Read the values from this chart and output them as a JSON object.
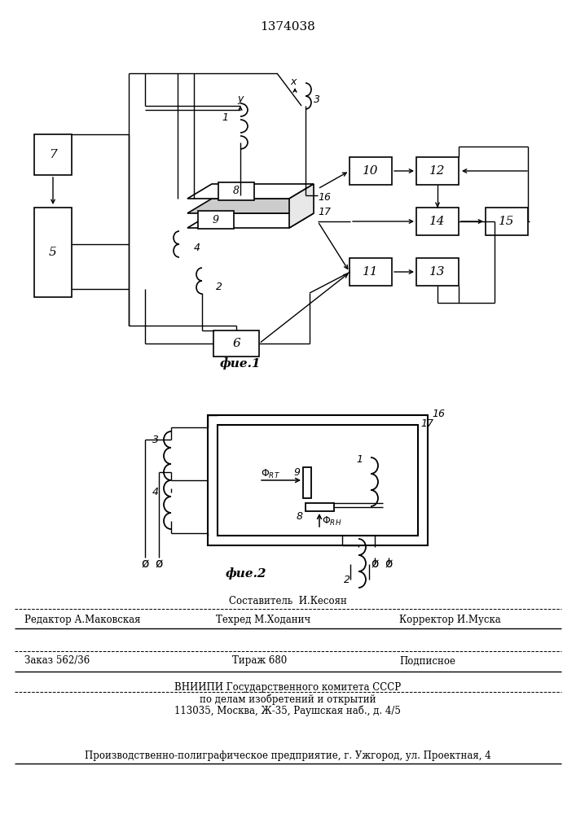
{
  "patent_number": "1374038",
  "fig1_label": "фие.1",
  "fig2_label": "фие.2",
  "bg": "#ffffff",
  "footer": {
    "sostavitel": "Составитель  И.Кесоян",
    "redaktor": "Редактор А.Маковская",
    "tehred": "Техред М.Ходанич",
    "korrektor": "Корректор И.Муска",
    "zakaz": "Заказ 562/36",
    "tirazh": "Тираж 680",
    "podpisnoe": "Подписное",
    "vniiipi1": "ВНИИПИ Государственного комитета СССР",
    "vniiipi2": "по делам изобретений и открытий",
    "vniiipi3": "113035, Москва, Ж-35, Раушская наб., д. 4/5",
    "predpr": "Производственно-полиграфическое предприятие, г. Ужгород, ул. Проектная, 4"
  }
}
